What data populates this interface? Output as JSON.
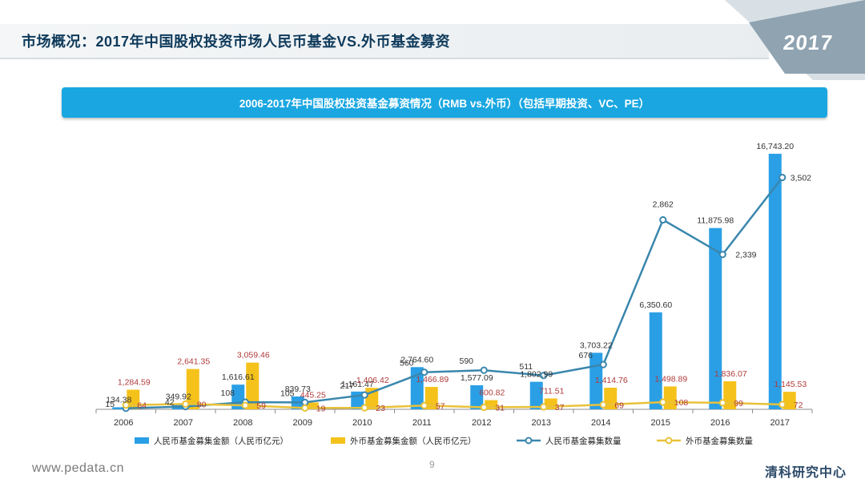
{
  "header": {
    "title": "市场概况：2017年中国股权投资市场人民币基金VS.外币基金募资",
    "year_badge": "2017"
  },
  "colors": {
    "rmb_bar": "#2a9fe6",
    "fx_bar": "#f5c21b",
    "rmb_line": "#3a87ad",
    "fx_line": "#e8c23a",
    "subtitle_bar": "#1aa7e1",
    "title": "#0e3a5b",
    "fx_label": "#b03a3a",
    "default_label": "#333333"
  },
  "chart_data": {
    "type": "bar",
    "title": "2006-2017年中国股权投资基金募资情况（RMB vs.外币）（包括早期投资、VC、PE）",
    "categories": [
      "2006",
      "2007",
      "2008",
      "2009",
      "2010",
      "2011",
      "2012",
      "2013",
      "2014",
      "2015",
      "2016",
      "2017"
    ],
    "series": [
      {
        "name": "人民币基金募集金额（人民币亿元）",
        "kind": "bar",
        "values": [
          134.38,
          349.92,
          1616.61,
          839.73,
          1161.47,
          2764.6,
          1577.09,
          1802.99,
          3703.22,
          6350.6,
          11875.98,
          16743.2
        ],
        "labels": [
          "134.38",
          "349.92",
          "1,616.61",
          "839.73",
          "1,161.47",
          "2,764.60",
          "1,577.09",
          "1,802.99",
          "3,703.22",
          "6,350.60",
          "11,875.98",
          "16,743.20"
        ]
      },
      {
        "name": "外币基金募集金额（人民币亿元）",
        "kind": "bar",
        "values": [
          1284.59,
          2641.35,
          3059.46,
          445.25,
          1406.42,
          1466.89,
          600.82,
          711.51,
          1414.76,
          1498.89,
          1836.07,
          1145.53
        ],
        "labels": [
          "1,284.59",
          "2,641.35",
          "3,059.46",
          "445.25",
          "1,406.42",
          "1,466.89",
          "600.82",
          "711.51",
          "1,414.76",
          "1,498.89",
          "1,836.07",
          "1,145.53"
        ]
      },
      {
        "name": "人民币基金募集数量",
        "kind": "line",
        "values": [
          15,
          42,
          108,
          105,
          217,
          560,
          590,
          511,
          676,
          2862,
          2339,
          3502
        ],
        "labels": [
          "15",
          "42",
          "108",
          "105",
          "217",
          "560",
          "590",
          "511",
          "676",
          "2,862",
          "2,339",
          "3,502"
        ]
      },
      {
        "name": "外币基金募集数量",
        "kind": "line",
        "values": [
          64,
          80,
          59,
          19,
          23,
          57,
          31,
          37,
          69,
          108,
          99,
          72
        ],
        "labels": [
          "64",
          "80",
          "59",
          "19",
          "23",
          "57",
          "31",
          "37",
          "69",
          "108",
          "99",
          "72"
        ]
      }
    ],
    "y_left": {
      "min": 0,
      "max": 18000
    },
    "y_right": {
      "min": 0,
      "max": 4150
    },
    "legend_position": "bottom"
  },
  "footer": {
    "url": "www.pedata.cn",
    "page": "9",
    "logo": "清科研究中心"
  }
}
